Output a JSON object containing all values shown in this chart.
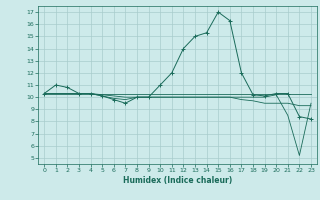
{
  "xlabel": "Humidex (Indice chaleur)",
  "bg_color": "#cdeaea",
  "grid_color": "#a8cccc",
  "line_color": "#1a6b5a",
  "xlim": [
    -0.5,
    23.5
  ],
  "ylim": [
    4.5,
    17.5
  ],
  "xticks": [
    0,
    1,
    2,
    3,
    4,
    5,
    6,
    7,
    8,
    9,
    10,
    11,
    12,
    13,
    14,
    15,
    16,
    17,
    18,
    19,
    20,
    21,
    22,
    23
  ],
  "yticks": [
    5,
    6,
    7,
    8,
    9,
    10,
    11,
    12,
    13,
    14,
    15,
    16,
    17
  ],
  "series": [
    {
      "x": [
        0,
        1,
        2,
        3,
        4,
        5,
        6,
        7,
        8,
        9,
        10,
        11,
        12,
        13,
        14,
        15,
        16,
        17,
        18,
        19,
        20,
        21,
        22,
        23
      ],
      "y": [
        10.3,
        11.0,
        10.8,
        10.3,
        10.3,
        10.1,
        9.8,
        9.5,
        10.0,
        10.0,
        11.0,
        12.0,
        14.0,
        15.0,
        15.3,
        17.0,
        16.3,
        12.0,
        10.2,
        10.1,
        10.3,
        10.3,
        8.4,
        8.2
      ],
      "marker": true
    },
    {
      "x": [
        0,
        1,
        2,
        3,
        4,
        5,
        6,
        7,
        8,
        9,
        10,
        11,
        12,
        13,
        14,
        15,
        16,
        17,
        18,
        19,
        20,
        21,
        22,
        23
      ],
      "y": [
        10.3,
        10.3,
        10.3,
        10.3,
        10.3,
        10.3,
        10.3,
        10.3,
        10.3,
        10.3,
        10.3,
        10.3,
        10.3,
        10.3,
        10.3,
        10.3,
        10.3,
        10.3,
        10.3,
        10.3,
        10.3,
        10.3,
        10.3,
        10.3
      ],
      "marker": false
    },
    {
      "x": [
        0,
        1,
        2,
        3,
        4,
        5,
        6,
        7,
        8,
        9,
        10,
        11,
        12,
        13,
        14,
        15,
        16,
        17,
        18,
        19,
        20,
        21,
        22,
        23
      ],
      "y": [
        10.3,
        10.3,
        10.3,
        10.3,
        10.3,
        10.2,
        10.1,
        10.0,
        10.0,
        10.0,
        10.0,
        10.0,
        10.0,
        10.0,
        10.0,
        10.0,
        10.0,
        9.8,
        9.7,
        9.5,
        9.5,
        9.5,
        9.3,
        9.3
      ],
      "marker": false
    },
    {
      "x": [
        0,
        1,
        2,
        3,
        4,
        5,
        6,
        7,
        8,
        9,
        10,
        11,
        12,
        13,
        14,
        15,
        16,
        17,
        18,
        19,
        20,
        21,
        22,
        23
      ],
      "y": [
        10.3,
        10.3,
        10.3,
        10.3,
        10.3,
        10.1,
        9.9,
        9.8,
        10.0,
        10.0,
        10.0,
        10.0,
        10.0,
        10.0,
        10.0,
        10.0,
        10.0,
        10.0,
        10.0,
        10.0,
        10.2,
        8.5,
        5.2,
        9.5
      ],
      "marker": false
    }
  ]
}
